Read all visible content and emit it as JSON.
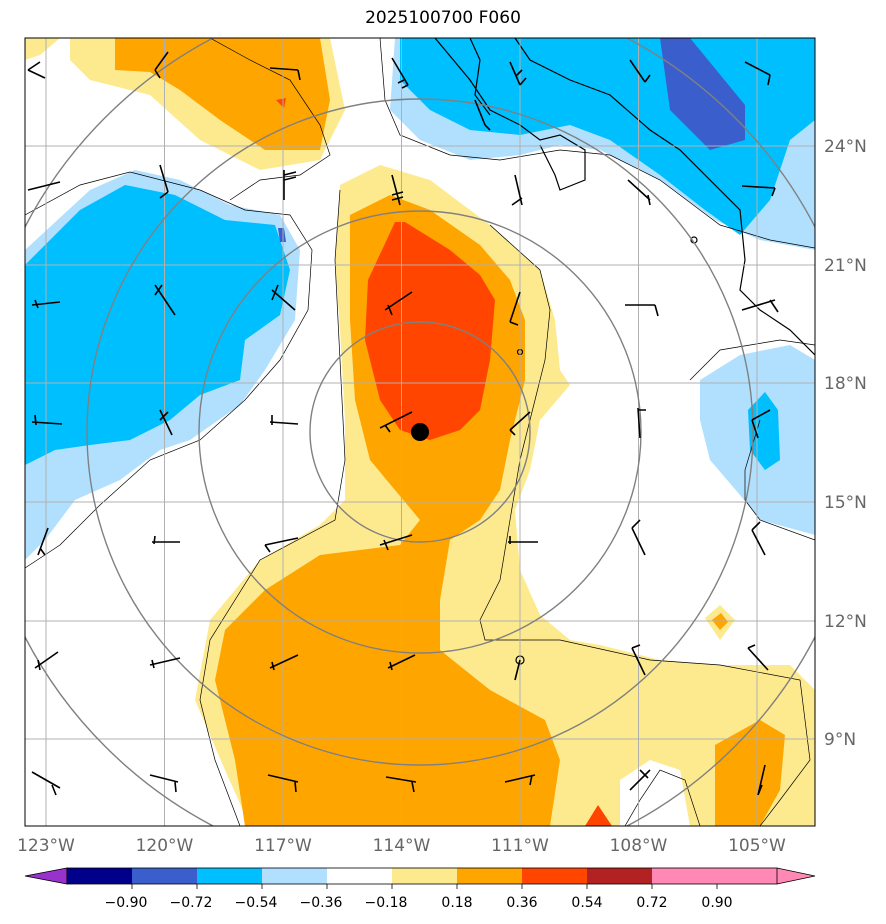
{
  "title": "2025100700 F060",
  "map": {
    "lon_range": [
      -123.5,
      -103.5
    ],
    "lat_range": [
      7,
      27
    ],
    "lon_ticks": [
      {
        "value": -123,
        "label": "123°W"
      },
      {
        "value": -120,
        "label": "120°W"
      },
      {
        "value": -117,
        "label": "117°W"
      },
      {
        "value": -114,
        "label": "114°W"
      },
      {
        "value": -111,
        "label": "111°W"
      },
      {
        "value": -108,
        "label": "108°W"
      },
      {
        "value": -105,
        "label": "105°W"
      }
    ],
    "lat_ticks": [
      {
        "value": 24,
        "label": "24°N"
      },
      {
        "value": 21,
        "label": "21°N"
      },
      {
        "value": 18,
        "label": "18°N"
      },
      {
        "value": 15,
        "label": "15°N"
      },
      {
        "value": 12,
        "label": "12°N"
      },
      {
        "value": 9,
        "label": "9°N"
      }
    ],
    "storm_center": {
      "lon": -113.6,
      "lat": 16.8
    },
    "range_rings_deg": [
      2.8,
      5.6,
      8.4
    ]
  },
  "colorbar": {
    "levels": [
      "−0.90",
      "−0.72",
      "−0.54",
      "−0.36",
      "−0.18",
      "0.18",
      "0.36",
      "0.54",
      "0.72",
      "0.90"
    ],
    "colors": [
      "#9932cc",
      "#00008b",
      "#3a5fcd",
      "#00bfff",
      "#b0e0fe",
      "#ffffff",
      "#fdea8f",
      "#ffa500",
      "#ff4500",
      "#b22222",
      "#ff88b4"
    ]
  }
}
